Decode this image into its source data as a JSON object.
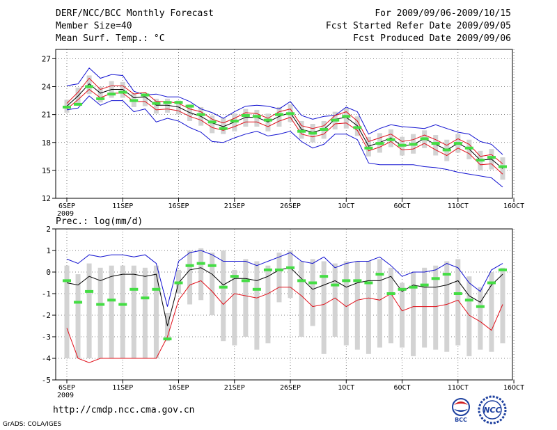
{
  "header": {
    "title": "DERF/NCC/BCC Monthly Forecast",
    "member_size": "Member Size=40",
    "variable": "Mean Surf. Temp.: °C",
    "period": "For 2009/09/06-2009/10/15",
    "started": "Fcst Started Refer Date 2009/09/05",
    "produced": "Fcst Produced Date 2009/09/06"
  },
  "footer": {
    "url": "http://cmdp.ncc.cma.gov.cn",
    "credit": "GrADS: COLA/IGES",
    "logo_bcc": "BCC",
    "logo_ncc": "NCC"
  },
  "colors": {
    "box": "#d3d3d3",
    "mean": "#000000",
    "std": "#e0101a",
    "range": "#1010d0",
    "median": "#44dd44",
    "grid": "#555555"
  },
  "chart_data": [
    {
      "type": "line",
      "title": "Mean Surf. Temp.: °C",
      "x_ticks": [
        "6SEP",
        "11SEP",
        "16SEP",
        "21SEP",
        "26SEP",
        "1OCT",
        "6OCT",
        "11OCT",
        "16OCT"
      ],
      "x_year": "2009",
      "y_ticks": [
        12,
        15,
        18,
        21,
        24,
        27
      ],
      "ylim": [
        12,
        28
      ],
      "days": 40,
      "series": {
        "max": [
          24.1,
          24.3,
          26.0,
          24.9,
          25.3,
          25.2,
          23.5,
          23.1,
          23.2,
          22.9,
          22.9,
          22.4,
          21.6,
          21.2,
          20.6,
          21.3,
          21.9,
          22.0,
          21.9,
          21.6,
          22.4,
          20.9,
          20.5,
          20.8,
          20.9,
          21.8,
          21.3,
          18.9,
          19.5,
          19.9,
          19.7,
          19.6,
          19.5,
          19.9,
          19.5,
          19.1,
          18.9,
          18.1,
          17.8,
          16.7
        ],
        "std_hi": [
          22.2,
          23.4,
          24.9,
          23.7,
          24.1,
          24.1,
          23.2,
          23.4,
          22.4,
          22.4,
          22.2,
          21.6,
          21.3,
          20.5,
          20.1,
          20.6,
          21.2,
          21.1,
          20.6,
          21.3,
          21.6,
          19.8,
          19.5,
          19.8,
          20.9,
          21.3,
          20.3,
          18.1,
          18.5,
          18.9,
          18.1,
          18.3,
          18.8,
          18.3,
          17.7,
          18.4,
          17.8,
          16.5,
          16.7,
          15.7
        ],
        "mean": [
          21.9,
          23.0,
          24.3,
          23.3,
          23.7,
          23.7,
          22.8,
          22.9,
          22.0,
          22.0,
          21.8,
          21.2,
          20.8,
          20.1,
          19.7,
          20.2,
          20.7,
          20.7,
          20.2,
          20.8,
          21.2,
          19.4,
          19.1,
          19.4,
          20.5,
          20.7,
          19.8,
          17.6,
          18.0,
          18.5,
          17.6,
          17.8,
          18.4,
          17.8,
          17.2,
          17.9,
          17.3,
          16.1,
          16.2,
          15.2
        ],
        "std_lo": [
          21.6,
          22.6,
          23.7,
          22.8,
          23.3,
          23.3,
          22.4,
          22.4,
          21.5,
          21.6,
          21.4,
          20.8,
          20.4,
          19.6,
          19.3,
          19.7,
          20.2,
          20.2,
          19.7,
          20.3,
          20.7,
          18.9,
          18.6,
          18.9,
          20.0,
          20.1,
          19.3,
          17.1,
          17.5,
          18.1,
          17.2,
          17.3,
          17.9,
          17.2,
          16.6,
          17.4,
          16.8,
          15.6,
          15.7,
          14.6
        ],
        "min": [
          21.5,
          21.7,
          23.0,
          22.0,
          22.5,
          22.5,
          21.3,
          21.6,
          20.2,
          20.6,
          20.3,
          19.6,
          19.1,
          18.1,
          18.0,
          18.5,
          18.9,
          19.2,
          18.7,
          18.9,
          19.2,
          18.1,
          17.4,
          17.8,
          18.9,
          18.9,
          18.3,
          15.8,
          15.6,
          15.6,
          15.6,
          15.6,
          15.4,
          15.3,
          15.1,
          14.8,
          14.6,
          14.4,
          14.2,
          13.2
        ],
        "box_hi": [
          22.6,
          23.9,
          25.2,
          24.0,
          24.6,
          24.5,
          23.3,
          23.3,
          22.7,
          22.7,
          22.5,
          22.1,
          21.8,
          20.9,
          20.6,
          21.1,
          21.6,
          21.5,
          21.1,
          21.8,
          22.1,
          20.3,
          20.0,
          20.3,
          21.3,
          21.7,
          20.8,
          18.6,
          19.0,
          19.4,
          18.6,
          18.9,
          19.3,
          18.8,
          18.3,
          18.9,
          18.3,
          17.1,
          17.3,
          16.4
        ],
        "box_lo": [
          21.2,
          22.1,
          23.2,
          22.3,
          22.8,
          22.8,
          21.8,
          21.9,
          21.1,
          21.2,
          21.0,
          20.3,
          19.8,
          19.0,
          18.9,
          19.2,
          19.7,
          19.7,
          19.2,
          19.7,
          20.2,
          18.4,
          18.0,
          18.4,
          19.4,
          19.5,
          18.7,
          16.5,
          16.9,
          17.5,
          16.6,
          16.8,
          17.4,
          16.6,
          16.0,
          16.9,
          16.2,
          15.0,
          15.1,
          14.0
        ],
        "median": [
          21.8,
          22.1,
          24.0,
          22.7,
          23.2,
          23.4,
          22.5,
          23.1,
          22.2,
          22.3,
          22.3,
          21.9,
          21.0,
          20.2,
          19.5,
          20.3,
          20.9,
          20.8,
          20.4,
          21.0,
          21.1,
          19.2,
          19.0,
          19.4,
          20.4,
          20.8,
          19.6,
          17.4,
          17.9,
          18.3,
          17.7,
          17.8,
          18.4,
          17.9,
          17.2,
          17.9,
          17.4,
          16.1,
          16.4,
          15.4
        ]
      }
    },
    {
      "type": "line",
      "title": "Prec.: log(mm/d)",
      "x_ticks": [
        "6SEP",
        "11SEP",
        "16SEP",
        "21SEP",
        "26SEP",
        "1OCT",
        "6OCT",
        "11OCT",
        "16OCT"
      ],
      "x_year": "2009",
      "y_ticks": [
        -5,
        -4,
        -3,
        -2,
        -1,
        0,
        1,
        2
      ],
      "ylim": [
        -5,
        2
      ],
      "days": 40,
      "series": {
        "max": [
          0.6,
          0.4,
          0.8,
          0.7,
          0.8,
          0.8,
          0.7,
          0.8,
          0.4,
          -1.6,
          0.5,
          0.9,
          1.0,
          0.8,
          0.5,
          0.5,
          0.5,
          0.3,
          0.5,
          0.7,
          0.9,
          0.5,
          0.4,
          0.7,
          0.2,
          0.4,
          0.5,
          0.5,
          0.7,
          0.3,
          -0.2,
          0.0,
          0.0,
          0.1,
          0.4,
          0.2,
          -0.5,
          -0.9,
          0.1,
          0.4
        ],
        "mean": [
          -0.5,
          -0.6,
          -0.2,
          -0.4,
          -0.2,
          -0.1,
          -0.1,
          -0.2,
          -0.1,
          -2.5,
          -0.5,
          0.1,
          0.2,
          -0.1,
          -0.6,
          -0.3,
          -0.3,
          -0.4,
          -0.2,
          0.1,
          0.2,
          -0.3,
          -0.8,
          -0.6,
          -0.4,
          -0.7,
          -0.5,
          -0.4,
          -0.4,
          -0.2,
          -0.9,
          -0.6,
          -0.7,
          -0.7,
          -0.6,
          -0.4,
          -1.1,
          -1.4,
          -0.6,
          -0.1
        ],
        "std_lo": [
          -2.6,
          -4.0,
          -4.2,
          -4.0,
          -4.0,
          -4.0,
          -4.0,
          -4.0,
          -4.0,
          -3.0,
          -1.3,
          -0.6,
          -0.4,
          -0.9,
          -1.5,
          -1.0,
          -1.1,
          -1.2,
          -1.0,
          -0.7,
          -0.7,
          -1.1,
          -1.6,
          -1.5,
          -1.2,
          -1.6,
          -1.3,
          -1.2,
          -1.3,
          -1.0,
          -1.8,
          -1.6,
          -1.6,
          -1.6,
          -1.5,
          -1.3,
          -2.0,
          -2.3,
          -2.7,
          -1.5
        ],
        "box_hi": [
          0.3,
          -0.1,
          0.4,
          0.2,
          0.3,
          0.3,
          0.3,
          0.2,
          0.3,
          -1.9,
          0.1,
          1.0,
          1.1,
          0.9,
          1.0,
          0.1,
          0.6,
          0.5,
          0.3,
          0.9,
          1.0,
          0.5,
          0.6,
          0.5,
          0.4,
          0.5,
          0.5,
          0.5,
          0.6,
          0.2,
          -0.5,
          0.0,
          0.2,
          0.3,
          0.5,
          0.6,
          -0.2,
          -0.7,
          0.0,
          0.2
        ],
        "box_lo": [
          -4.0,
          -4.0,
          -4.0,
          -4.0,
          -4.0,
          -4.0,
          -4.0,
          -4.0,
          -4.0,
          -3.2,
          -1.0,
          -1.5,
          -1.3,
          -2.0,
          -3.2,
          -3.4,
          -3.0,
          -3.6,
          -3.3,
          -1.4,
          -1.2,
          -3.0,
          -2.5,
          -3.8,
          -3.0,
          -3.4,
          -3.6,
          -3.8,
          -3.5,
          -3.3,
          -3.5,
          -3.9,
          -3.5,
          -3.6,
          -3.7,
          -3.4,
          -3.9,
          -3.6,
          -3.7,
          -3.3
        ],
        "median": [
          -0.4,
          -1.4,
          -0.9,
          -1.5,
          -1.3,
          -1.5,
          -0.8,
          -1.2,
          -0.8,
          -3.1,
          -0.5,
          0.3,
          0.4,
          0.3,
          -0.7,
          -0.2,
          -0.4,
          -0.8,
          0.1,
          0.1,
          0.2,
          -0.4,
          -0.5,
          -0.2,
          -0.6,
          -0.4,
          -0.4,
          -0.5,
          -0.1,
          -1.0,
          -0.8,
          -0.7,
          -0.6,
          -0.3,
          -0.1,
          -1.0,
          -1.3,
          -1.6,
          -0.5,
          0.1
        ]
      }
    }
  ]
}
